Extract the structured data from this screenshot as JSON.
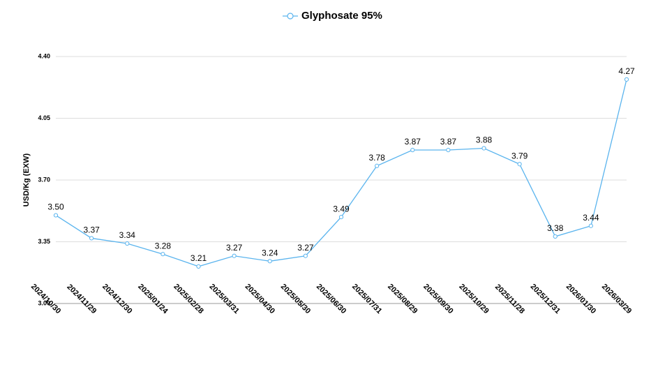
{
  "chart_data": {
    "type": "line",
    "title": "Glyphosate 95%",
    "y_label": "USD/Kg  (EXW)",
    "categories": [
      "2024/10/30",
      "2024/11/29",
      "2024/12/30",
      "2025/01/24",
      "2025/02/28",
      "2025/03/31",
      "2025/04/30",
      "2025/05/30",
      "2025/06/30",
      "2025/07/31",
      "2025/08/29",
      "2025/09/30",
      "2025/10/29",
      "2025/11/28",
      "2025/12/31",
      "2026/01/30",
      "2026/03/29"
    ],
    "series": [
      {
        "name": "Glyphosate 95%",
        "color": "#5ab4ee",
        "values": [
          3.5,
          3.37,
          3.34,
          3.28,
          3.21,
          3.27,
          3.24,
          3.27,
          3.49,
          3.78,
          3.87,
          3.87,
          3.88,
          3.79,
          3.38,
          3.44,
          4.27
        ],
        "value_labels": [
          "3.50",
          "3.37",
          "3.34",
          "3.28",
          "3.21",
          "3.27",
          "3.24",
          "3.27",
          "3.49",
          "3.78",
          "3.87",
          "3.87",
          "3.88",
          "3.79",
          "3.38",
          "3.44",
          "4.27"
        ]
      }
    ],
    "ylim": [
      3,
      4.4
    ],
    "yticks": [
      {
        "value": 3,
        "label": "3.00"
      },
      3.35,
      {
        "value": 3.7,
        "label": "3.70"
      },
      4.05,
      {
        "value": 4.4,
        "label": "4.40"
      }
    ],
    "grid": true
  }
}
